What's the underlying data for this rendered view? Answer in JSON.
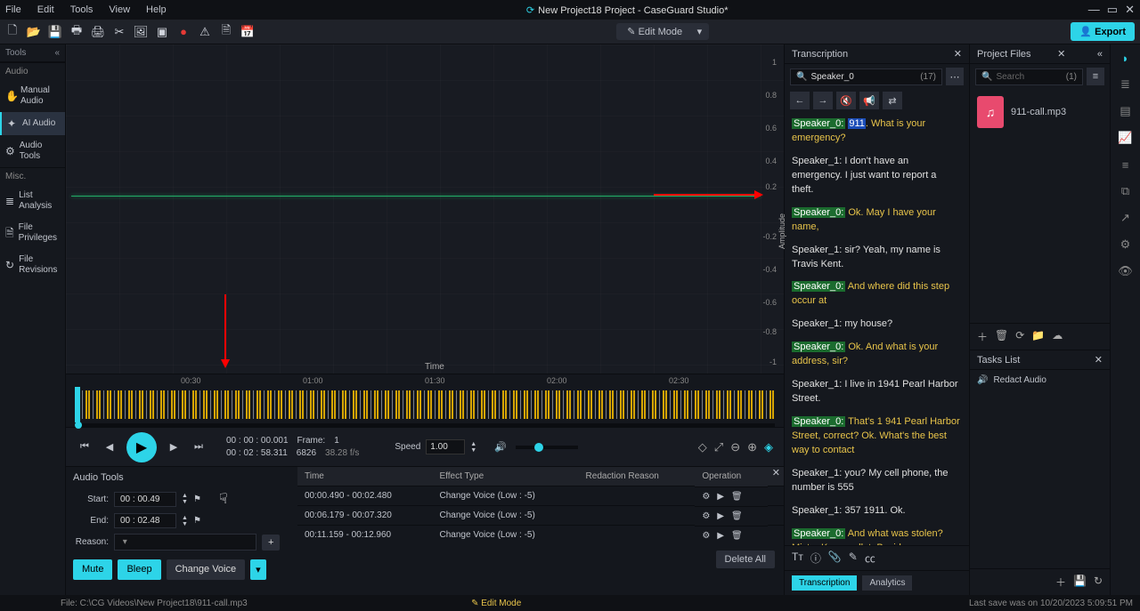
{
  "app": {
    "title": "New Project18 Project - CaseGuard Studio*",
    "menus": [
      "File",
      "Edit",
      "Tools",
      "View",
      "Help"
    ],
    "editmode": "Edit Mode",
    "export": "Export"
  },
  "leftrail": {
    "header": "Tools",
    "items": [
      {
        "icon": "",
        "label": "Audio",
        "heading": true
      },
      {
        "icon": "✋",
        "label": "Manual Audio"
      },
      {
        "icon": "✦",
        "label": "AI Audio",
        "active": true
      },
      {
        "icon": "⚙",
        "label": "Audio Tools"
      },
      {
        "icon": "",
        "label": "Misc.",
        "heading": true
      },
      {
        "icon": "≣",
        "label": "List Analysis"
      },
      {
        "icon": "🗎",
        "label": "File Privileges"
      },
      {
        "icon": "↻",
        "label": "File Revisions"
      }
    ]
  },
  "chart": {
    "yticks": [
      {
        "v": "1",
        "p": 4
      },
      {
        "v": "0.8",
        "p": 14
      },
      {
        "v": "0.6",
        "p": 24
      },
      {
        "v": "0.4",
        "p": 34
      },
      {
        "v": "0.2",
        "p": 42
      },
      {
        "v": "-0.2",
        "p": 57
      },
      {
        "v": "-0.4",
        "p": 67
      },
      {
        "v": "-0.6",
        "p": 77
      },
      {
        "v": "-0.8",
        "p": 86
      },
      {
        "v": "-1",
        "p": 95
      }
    ],
    "axis_y": "Amplitude",
    "axis_x": "Time"
  },
  "timeline": {
    "ticks": [
      {
        "v": "00:30",
        "p": 16
      },
      {
        "v": "01:00",
        "p": 33
      },
      {
        "v": "01:30",
        "p": 50
      },
      {
        "v": "02:00",
        "p": 67
      },
      {
        "v": "02:30",
        "p": 84
      }
    ]
  },
  "transport": {
    "time1": "00 : 00 : 00.001",
    "frame_label": "Frame:",
    "frame": "1",
    "time2": "00 : 02 : 58.311",
    "frames_total": "6826",
    "fps": "38.28 f/s",
    "speed_label": "Speed",
    "speed": "1.00"
  },
  "audiotools": {
    "header": "Audio Tools",
    "start_label": "Start:",
    "start": "00 : 00.49",
    "end_label": "End:",
    "end": "00 : 02.48",
    "reason_label": "Reason:",
    "mute": "Mute",
    "bleep": "Bleep",
    "changevoice": "Change Voice",
    "cols": [
      "Time",
      "Effect Type",
      "Redaction Reason",
      "Operation"
    ],
    "rows": [
      {
        "time": "00:00.490 - 00:02.480",
        "effect": "Change Voice (Low : -5)"
      },
      {
        "time": "00:06.179 - 00:07.320",
        "effect": "Change Voice (Low : -5)"
      },
      {
        "time": "00:11.159 - 00:12.960",
        "effect": "Change Voice (Low : -5)"
      }
    ],
    "deleteall": "Delete All"
  },
  "transcription": {
    "header": "Transcription",
    "search": "Speaker_0",
    "count": "(17)",
    "lines": [
      {
        "spk": "Speaker_0:",
        "sel": "911",
        "txt": ". What is your emergency?",
        "cls": "yellow"
      },
      {
        "spk": "Speaker_1:",
        "txt": " I don't have an emergency. I just want to report a theft.",
        "cls": "white"
      },
      {
        "spk": "Speaker_0:",
        "txt": " Ok. May I have your name,",
        "cls": "yellow"
      },
      {
        "spk": "Speaker_1:",
        "txt": " sir? Yeah, my name is Travis Kent.",
        "cls": "white"
      },
      {
        "spk": "Speaker_0:",
        "txt": " And where did this step occur at",
        "cls": "yellow"
      },
      {
        "spk": "Speaker_1:",
        "txt": " my house?",
        "cls": "white"
      },
      {
        "spk": "Speaker_0:",
        "txt": " Ok. And what is your address, sir?",
        "cls": "yellow"
      },
      {
        "spk": "Speaker_1:",
        "txt": " I live in 1941 Pearl Harbor Street.",
        "cls": "white"
      },
      {
        "spk": "Speaker_0:",
        "txt": " That's 1 941 Pearl Harbor Street, correct? Ok. What's the best way to contact",
        "cls": "yellow"
      },
      {
        "spk": "Speaker_1:",
        "txt": " you? My cell phone, the number is 555",
        "cls": "white"
      },
      {
        "spk": "Speaker_1:",
        "txt": " 357 1911. Ok.",
        "cls": "white"
      },
      {
        "spk": "Speaker_0:",
        "txt": " And what was stolen? Mister K my wallet. Besides your wallet. Was there anything else of value taken?",
        "cls": "yellow"
      }
    ],
    "tabs": {
      "transcription": "Transcription",
      "analytics": "Analytics"
    }
  },
  "files": {
    "header": "Project Files",
    "search_placeholder": "Search",
    "search_count": "(1)",
    "file": "911-call.mp3",
    "tasks_header": "Tasks List",
    "task1": "Redact Audio"
  },
  "status": {
    "file": "File: C:\\CG Videos\\New Project18\\911-call.mp3",
    "mode": "Edit Mode",
    "save": "Last save was on 10/20/2023 5:09:51 PM"
  }
}
